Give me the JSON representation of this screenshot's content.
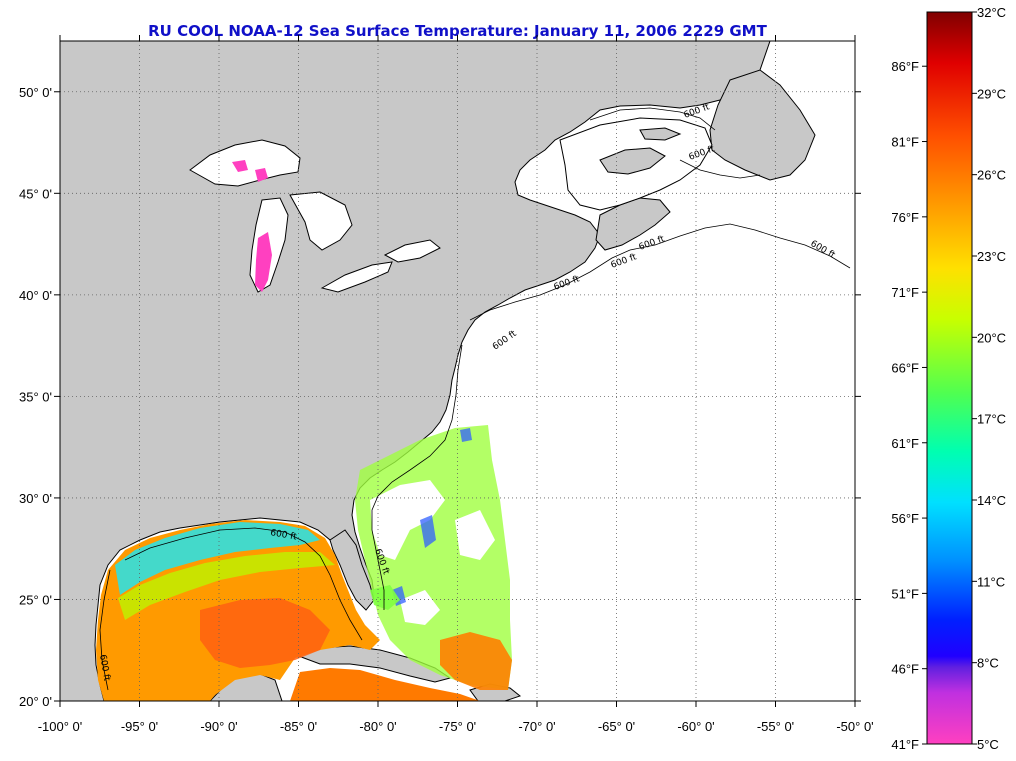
{
  "title": "RU COOL  NOAA-12  Sea Surface Temperature:  January 11, 2006 2229 GMT",
  "map": {
    "lon_labels": [
      "-100° 0'",
      "-95° 0'",
      "-90° 0'",
      "-85° 0'",
      "-80° 0'",
      "-75° 0'",
      "-70° 0'",
      "-65° 0'",
      "-60° 0'",
      "-55° 0'",
      "-50° 0'"
    ],
    "lon_values": [
      -100,
      -95,
      -90,
      -85,
      -80,
      -75,
      -70,
      -65,
      -60,
      -55,
      -50
    ],
    "lat_labels": [
      "20° 0'",
      "25° 0'",
      "30° 0'",
      "35° 0'",
      "40° 0'",
      "45° 0'",
      "50° 0'"
    ],
    "lat_values": [
      20,
      25,
      30,
      35,
      40,
      45,
      50
    ],
    "lon_range": [
      -100,
      -50
    ],
    "lat_range": [
      20,
      52.5
    ],
    "contour_labels": [
      "600 ft",
      "600 ft",
      "600 ft",
      "600 ft",
      "600 ft",
      "600 ft",
      "600 ft",
      "600 ft",
      "600 ft",
      "600 ft"
    ],
    "land_color": "#c8c8c8",
    "grid": true
  },
  "colorbar": {
    "fahrenheit_labels": [
      "86°F",
      "81°F",
      "76°F",
      "71°F",
      "66°F",
      "61°F",
      "56°F",
      "51°F",
      "46°F",
      "41°F"
    ],
    "celsius_labels": [
      "32°C",
      "29°C",
      "26°C",
      "23°C",
      "20°C",
      "17°C",
      "14°C",
      "11°C",
      "8°C",
      "5°C"
    ],
    "celsius_values": [
      32,
      29,
      26,
      23,
      20,
      17,
      14,
      11,
      8,
      5
    ],
    "fahrenheit_values": [
      86,
      81,
      76,
      71,
      66,
      61,
      56,
      51,
      46,
      41
    ],
    "range_c": [
      5,
      32
    ],
    "colors_top_to_bottom": [
      "#800000",
      "#e00000",
      "#ff5000",
      "#ff9800",
      "#ffe000",
      "#c8ff00",
      "#50ff50",
      "#00ffb0",
      "#00e0ff",
      "#0090ff",
      "#0020ff",
      "#6020e0",
      "#c030e0",
      "#ff40e0",
      "#ff40c0"
    ]
  }
}
